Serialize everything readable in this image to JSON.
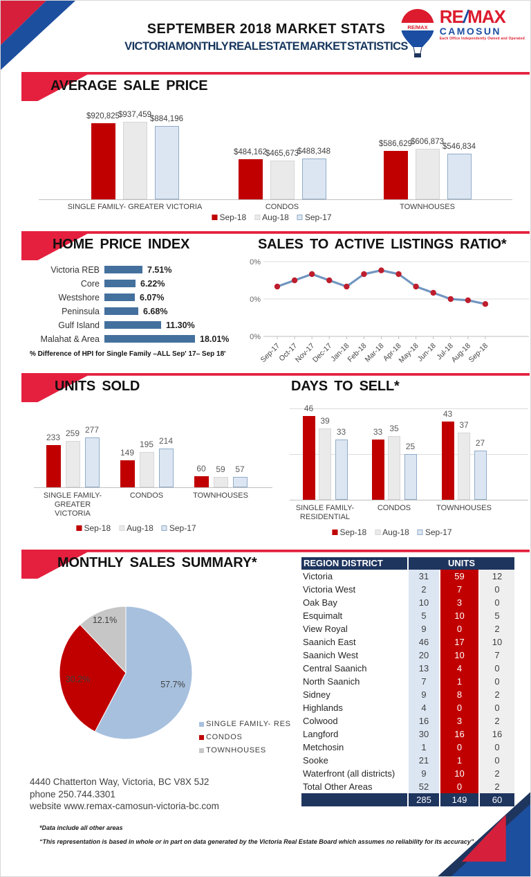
{
  "page": {
    "title": "SEPTEMBER 2018 MARKET STATS",
    "subtitle": "VICTORIA MONTHLY REAL ESTATE MARKET STATISTICS"
  },
  "logo": {
    "re": "RE",
    "slash": "/",
    "max": "MAX",
    "name": "CAMOSUN",
    "tagline": "Each Office Independently Owned and Operated",
    "balloon_label": "RE/MAX"
  },
  "sections": {
    "avg_price_title": "AVERAGE SALE PRICE",
    "hpi_title": "HOME PRICE INDEX",
    "hpi_caption": "% Difference of HPI for Single Family –ALL Sep' 17– Sep 18'",
    "ratio_title": "SALES TO ACTIVE LISTINGS RATIO*",
    "units_title": "UNITS SOLD",
    "days_title": "DAYS TO SELL*",
    "summary_title": "MONTHLY SALES SUMMARY*"
  },
  "legend": {
    "items": [
      {
        "label": "Sep-18",
        "color": "#C00000",
        "border": "#C00000"
      },
      {
        "label": "Aug-18",
        "color": "#EAEAEA",
        "border": "#D6D6D6"
      },
      {
        "label": "Sep-17",
        "color": "#DCE6F2",
        "border": "#90ABC8"
      }
    ]
  },
  "chart_data": [
    {
      "name": "average_sale_price",
      "type": "bar",
      "title": "AVERAGE SALE PRICE",
      "categories": [
        "SINGLE FAMILY- GREATER VICTORIA",
        "CONDOS",
        "TOWNHOUSES"
      ],
      "series": [
        {
          "name": "Sep-18",
          "values": [
            920825,
            484162,
            586629
          ]
        },
        {
          "name": "Aug-18",
          "values": [
            937459,
            465673,
            606873
          ]
        },
        {
          "name": "Sep-17",
          "values": [
            884196,
            488348,
            546834
          ]
        }
      ],
      "value_format": "currency",
      "legend_position": "bottom"
    },
    {
      "name": "home_price_index",
      "type": "bar",
      "orientation": "horizontal",
      "title": "HOME PRICE INDEX",
      "categories": [
        "Victoria REB",
        "Core",
        "Westshore",
        "Peninsula",
        "Gulf Island",
        "Malahat & Area"
      ],
      "values": [
        7.51,
        6.22,
        6.07,
        6.68,
        11.3,
        18.01
      ],
      "value_format": "percent2",
      "footnote": "% Difference of HPI for Single Family –ALL Sep' 17– Sep 18'"
    },
    {
      "name": "sales_to_active_listings_ratio",
      "type": "line",
      "title": "SALES TO ACTIVE LISTINGS RATIO*",
      "x": [
        "Sep-17",
        "Oct-17",
        "Nov-17",
        "Dec-17",
        "Jan-18",
        "Feb-18",
        "Mar-18",
        "Apr-18",
        "May-18",
        "Jun-18",
        "Jul-18",
        "Aug-18",
        "Sep-18"
      ],
      "values": [
        40,
        45,
        50,
        45,
        40,
        50,
        53,
        50,
        40,
        35,
        30,
        29,
        26
      ],
      "ylim": [
        0,
        60
      ],
      "yticks": [
        0,
        30,
        60
      ],
      "grid": true,
      "line_color": "#7195C1",
      "marker_color": "#BE1E2D"
    },
    {
      "name": "units_sold",
      "type": "bar",
      "title": "UNITS SOLD",
      "categories": [
        "SINGLE FAMILY- GREATER VICTORIA",
        "CONDOS",
        "TOWNHOUSES"
      ],
      "series": [
        {
          "name": "Sep-18",
          "values": [
            233,
            149,
            60
          ]
        },
        {
          "name": "Aug-18",
          "values": [
            259,
            195,
            59
          ]
        },
        {
          "name": "Sep-17",
          "values": [
            277,
            214,
            57
          ]
        }
      ],
      "legend_position": "bottom"
    },
    {
      "name": "days_to_sell",
      "type": "bar",
      "title": "DAYS TO SELL*",
      "categories": [
        "SINGLE FAMILY- RESIDENTIAL",
        "CONDOS",
        "TOWNHOUSES"
      ],
      "series": [
        {
          "name": "Sep-18",
          "values": [
            46,
            33,
            43
          ]
        },
        {
          "name": "Aug-18",
          "values": [
            39,
            35,
            37
          ]
        },
        {
          "name": "Sep-17",
          "values": [
            33,
            25,
            27
          ]
        }
      ],
      "gridlines": [
        25,
        50
      ],
      "legend_position": "bottom"
    },
    {
      "name": "monthly_sales_summary",
      "type": "pie",
      "title": "MONTHLY SALES SUMMARY*",
      "labels": [
        "SINGLE FAMILY- RES",
        "CONDOS",
        "TOWNHOUSES"
      ],
      "values": [
        57.7,
        30.2,
        12.1
      ],
      "colors": [
        "#A7C0DE",
        "#C00000",
        "#C6C6C6"
      ],
      "legend_position": "right"
    },
    {
      "name": "region_units",
      "type": "table",
      "columns": [
        "REGION DISTRICT",
        "UNITS"
      ],
      "rows": [
        [
          "Victoria",
          31,
          59,
          12
        ],
        [
          "Victoria West",
          2,
          7,
          0
        ],
        [
          "Oak Bay",
          10,
          3,
          0
        ],
        [
          "Esquimalt",
          5,
          10,
          5
        ],
        [
          "View Royal",
          9,
          0,
          2
        ],
        [
          "Saanich East",
          46,
          17,
          10
        ],
        [
          "Saanich West",
          20,
          10,
          7
        ],
        [
          "Central Saanich",
          13,
          4,
          0
        ],
        [
          "North Saanich",
          7,
          1,
          0
        ],
        [
          "Sidney",
          9,
          8,
          2
        ],
        [
          "Highlands",
          4,
          0,
          0
        ],
        [
          "Colwood",
          16,
          3,
          2
        ],
        [
          "Langford",
          30,
          16,
          16
        ],
        [
          "Metchosin",
          1,
          0,
          0
        ],
        [
          "Sooke",
          21,
          1,
          0
        ],
        [
          "Waterfront (all districts)",
          9,
          10,
          2
        ],
        [
          "Total Other Areas",
          52,
          0,
          2
        ]
      ],
      "totals": [
        285,
        149,
        60
      ]
    }
  ],
  "footer": {
    "address": "4440 Chatterton Way, Victoria, BC V8X 5J2",
    "phone": "phone 250.744.3301",
    "website": "website www.remax-camosun-victoria-bc.com",
    "note1": "*Data include all other areas",
    "note2": "“This representation is based in whole or in part on data generated by the Victoria Real Estate Board which assumes no reliability for its accuracy”"
  }
}
